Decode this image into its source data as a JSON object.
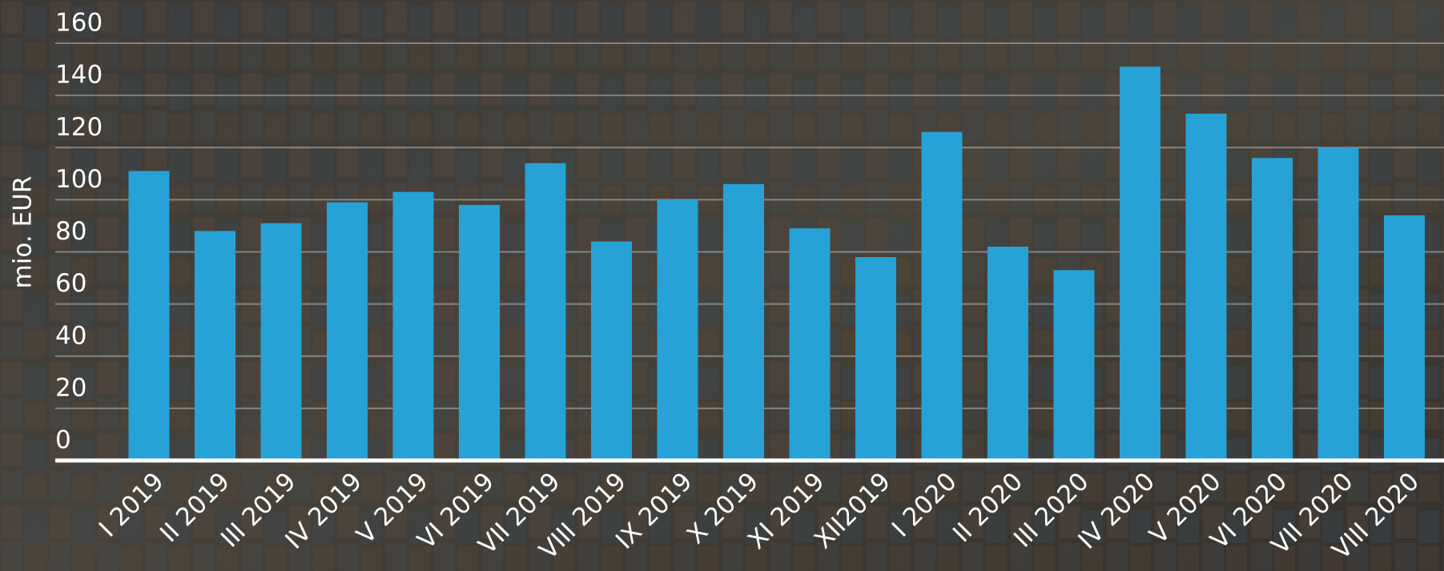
{
  "chart_data": {
    "type": "bar",
    "y_label": "mio. EUR",
    "categories": [
      "I 2019",
      "II 2019",
      "III 2019",
      "IV 2019",
      "V 2019",
      "VI 2019",
      "VII 2019",
      "VIII 2019",
      "IX 2019",
      "X 2019",
      "XI 2019",
      "XII2019",
      "I 2020",
      "II 2020",
      "III 2020",
      "IV 2020",
      "V 2020",
      "VI 2020",
      "VII 2020",
      "VIII 2020"
    ],
    "values": [
      111,
      88,
      91,
      99,
      103,
      98,
      114,
      84,
      100,
      106,
      89,
      78,
      126,
      82,
      73,
      151,
      133,
      116,
      120,
      94
    ],
    "color": "#26a2d6",
    "ylim": [
      0,
      160
    ],
    "yticks": [
      0,
      20,
      40,
      60,
      80,
      100,
      120,
      140,
      160
    ],
    "grid": true
  }
}
